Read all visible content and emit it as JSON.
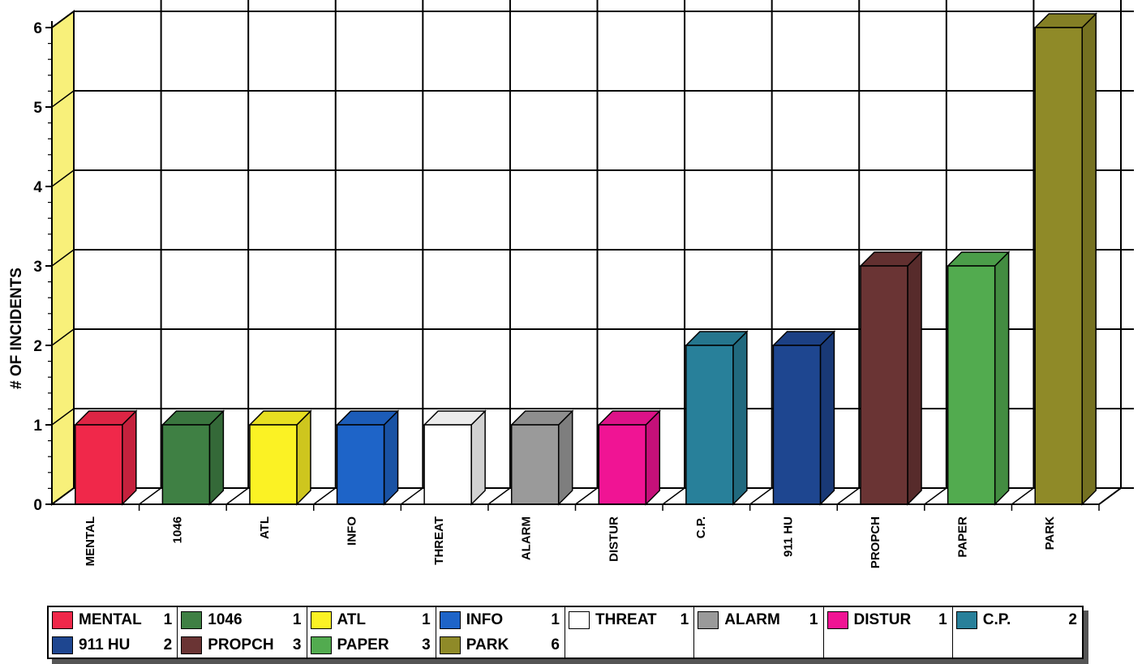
{
  "chart_data": {
    "type": "bar",
    "title": "",
    "xlabel": "",
    "ylabel": "# OF INCIDENTS",
    "ylim": [
      0,
      6
    ],
    "yticks": [
      "0",
      "1",
      "2",
      "3",
      "4",
      "5",
      "6"
    ],
    "grid": true,
    "three_d": true,
    "legend_position": "bottom",
    "categories": [
      "MENTAL",
      "1046",
      "ATL",
      "INFO",
      "THREAT",
      "ALARM",
      "DISTUR",
      "C.P.",
      "911 HU",
      "PROPCH",
      "PAPER",
      "PARK"
    ],
    "values": [
      1,
      1,
      1,
      1,
      1,
      1,
      1,
      2,
      2,
      3,
      3,
      6
    ],
    "colors": [
      "#f0284a",
      "#3f8044",
      "#fbf224",
      "#1e64c8",
      "#ffffff",
      "#9a9a9a",
      "#f01494",
      "#28809a",
      "#1e4690",
      "#6a3434",
      "#52ab4f",
      "#8f8a28"
    ],
    "legend": [
      {
        "label": "MENTAL",
        "value": "1"
      },
      {
        "label": "1046",
        "value": "1"
      },
      {
        "label": "ATL",
        "value": "1"
      },
      {
        "label": "INFO",
        "value": "1"
      },
      {
        "label": "THREAT",
        "value": "1"
      },
      {
        "label": "ALARM",
        "value": "1"
      },
      {
        "label": "DISTUR",
        "value": "1"
      },
      {
        "label": "C.P.",
        "value": "2"
      },
      {
        "label": "911 HU",
        "value": "2"
      },
      {
        "label": "PROPCH",
        "value": "3"
      },
      {
        "label": "PAPER",
        "value": "3"
      },
      {
        "label": "PARK",
        "value": "6"
      }
    ]
  },
  "wall_color": "#f8f07a"
}
